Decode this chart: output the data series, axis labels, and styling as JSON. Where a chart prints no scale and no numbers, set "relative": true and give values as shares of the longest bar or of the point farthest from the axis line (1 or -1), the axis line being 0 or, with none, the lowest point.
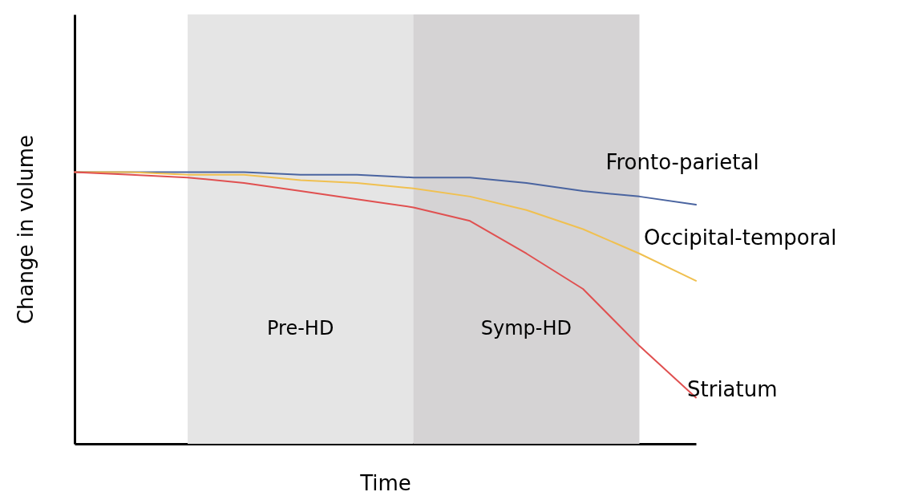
{
  "chart_data": {
    "type": "line",
    "xlabel": "Time",
    "ylabel": "Change in volume",
    "relative": true,
    "tick_labels": false,
    "grid": false,
    "marker": "none",
    "line_style": "solid",
    "categories": [
      null,
      null,
      null,
      null,
      null,
      null,
      null,
      null,
      null,
      null,
      null,
      null
    ],
    "annotations": [
      "Pre-HD",
      "Symp-HD"
    ],
    "series": [
      {
        "name": "Fronto-parietal",
        "color": "#4a64a0",
        "values": [
          1,
          1,
          1,
          1,
          0.99,
          0.99,
          0.98,
          0.98,
          0.96,
          0.93,
          0.91,
          0.88
        ]
      },
      {
        "name": "Occipital-temporal",
        "color": "#f0c050",
        "values": [
          1,
          1,
          0.99,
          0.99,
          0.97,
          0.96,
          0.94,
          0.91,
          0.86,
          0.79,
          0.7,
          0.6
        ]
      },
      {
        "name": "Striatum",
        "color": "#e05050",
        "values": [
          1,
          0.99,
          0.98,
          0.96,
          0.93,
          0.9,
          0.87,
          0.82,
          0.7,
          0.57,
          0.36,
          0.17
        ]
      }
    ]
  }
}
